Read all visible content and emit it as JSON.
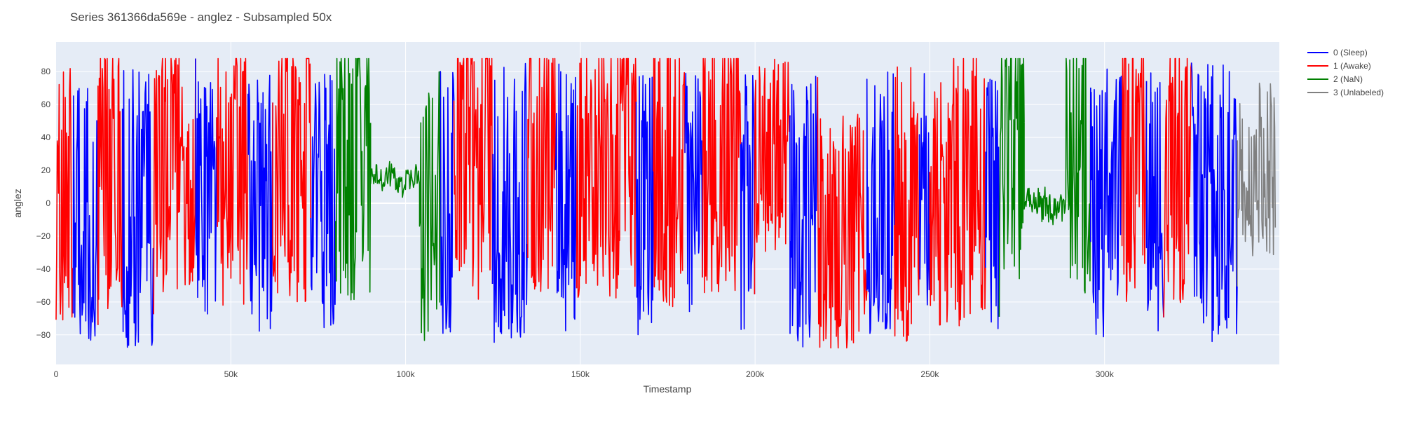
{
  "chart_data": {
    "type": "line",
    "title": "Series 361366da569e - anglez - Subsampled 50x",
    "xlabel": "Timestamp",
    "ylabel": "anglez",
    "xlim": [
      0,
      350000
    ],
    "ylim": [
      -98,
      98
    ],
    "x_ticks": [
      {
        "value": 0,
        "label": "0"
      },
      {
        "value": 50000,
        "label": "50k"
      },
      {
        "value": 100000,
        "label": "100k"
      },
      {
        "value": 150000,
        "label": "150k"
      },
      {
        "value": 200000,
        "label": "200k"
      },
      {
        "value": 250000,
        "label": "250k"
      },
      {
        "value": 300000,
        "label": "300k"
      }
    ],
    "y_ticks": [
      {
        "value": -80,
        "label": "−80"
      },
      {
        "value": -60,
        "label": "−60"
      },
      {
        "value": -40,
        "label": "−40"
      },
      {
        "value": -20,
        "label": "−20"
      },
      {
        "value": 0,
        "label": "0"
      },
      {
        "value": 20,
        "label": "20"
      },
      {
        "value": 40,
        "label": "40"
      },
      {
        "value": 60,
        "label": "60"
      },
      {
        "value": 80,
        "label": "80"
      }
    ],
    "grid": true,
    "legend_position": "top-right-outside",
    "series": [
      {
        "name": "0 (Sleep)",
        "color": "#0000ff"
      },
      {
        "name": "1 (Awake)",
        "color": "#ff0000"
      },
      {
        "name": "2 (NaN)",
        "color": "#008000"
      },
      {
        "name": "3 (Unlabeled)",
        "color": "#808080"
      }
    ],
    "segments": [
      {
        "series": 1,
        "x_start": 0,
        "x_end": 5000,
        "style": "noisy",
        "center": 0,
        "spread": 85
      },
      {
        "series": 0,
        "x_start": 5000,
        "x_end": 12000,
        "style": "noisy",
        "center": -5,
        "spread": 80
      },
      {
        "series": 1,
        "x_start": 12000,
        "x_end": 19000,
        "style": "noisy",
        "center": 20,
        "spread": 85
      },
      {
        "series": 0,
        "x_start": 19000,
        "x_end": 28000,
        "style": "noisy",
        "center": 0,
        "spread": 88
      },
      {
        "series": 1,
        "x_start": 28000,
        "x_end": 40000,
        "style": "noisy",
        "center": 25,
        "spread": 80
      },
      {
        "series": 0,
        "x_start": 40000,
        "x_end": 46000,
        "style": "noisy",
        "center": 0,
        "spread": 75
      },
      {
        "series": 1,
        "x_start": 46000,
        "x_end": 55000,
        "style": "noisy",
        "center": 20,
        "spread": 85
      },
      {
        "series": 0,
        "x_start": 55000,
        "x_end": 62000,
        "style": "noisy",
        "center": 0,
        "spread": 80
      },
      {
        "series": 1,
        "x_start": 62000,
        "x_end": 73000,
        "style": "noisy",
        "center": 25,
        "spread": 85
      },
      {
        "series": 0,
        "x_start": 73000,
        "x_end": 80000,
        "style": "noisy",
        "center": 0,
        "spread": 80
      },
      {
        "series": 2,
        "x_start": 80000,
        "x_end": 90000,
        "style": "noisy",
        "center": 25,
        "spread": 85
      },
      {
        "series": 2,
        "x_start": 90000,
        "x_end": 104000,
        "style": "calm",
        "center": 15,
        "spread": 22
      },
      {
        "series": 2,
        "x_start": 104000,
        "x_end": 110000,
        "style": "noisy",
        "center": 0,
        "spread": 85
      },
      {
        "series": 0,
        "x_start": 110000,
        "x_end": 114000,
        "style": "noisy",
        "center": 0,
        "spread": 80
      },
      {
        "series": 1,
        "x_start": 114000,
        "x_end": 125000,
        "style": "noisy",
        "center": 25,
        "spread": 85
      },
      {
        "series": 0,
        "x_start": 125000,
        "x_end": 135000,
        "style": "noisy",
        "center": 0,
        "spread": 85
      },
      {
        "series": 1,
        "x_start": 135000,
        "x_end": 143000,
        "style": "noisy",
        "center": 25,
        "spread": 80
      },
      {
        "series": 0,
        "x_start": 143000,
        "x_end": 149000,
        "style": "noisy",
        "center": 0,
        "spread": 88
      },
      {
        "series": 1,
        "x_start": 149000,
        "x_end": 166000,
        "style": "noisy",
        "center": 25,
        "spread": 85
      },
      {
        "series": 0,
        "x_start": 166000,
        "x_end": 171000,
        "style": "noisy",
        "center": 0,
        "spread": 80
      },
      {
        "series": 1,
        "x_start": 171000,
        "x_end": 180000,
        "style": "noisy",
        "center": 20,
        "spread": 85
      },
      {
        "series": 0,
        "x_start": 180000,
        "x_end": 185000,
        "style": "noisy",
        "center": 0,
        "spread": 85
      },
      {
        "series": 1,
        "x_start": 185000,
        "x_end": 196000,
        "style": "noisy",
        "center": 25,
        "spread": 80
      },
      {
        "series": 0,
        "x_start": 196000,
        "x_end": 200000,
        "style": "noisy",
        "center": 0,
        "spread": 80
      },
      {
        "series": 1,
        "x_start": 200000,
        "x_end": 210000,
        "style": "noisy",
        "center": 30,
        "spread": 60
      },
      {
        "series": 0,
        "x_start": 210000,
        "x_end": 218000,
        "style": "noisy",
        "center": 0,
        "spread": 88
      },
      {
        "series": 1,
        "x_start": 218000,
        "x_end": 232000,
        "style": "noisy",
        "center": -20,
        "spread": 75
      },
      {
        "series": 0,
        "x_start": 232000,
        "x_end": 240000,
        "style": "noisy",
        "center": 0,
        "spread": 80
      },
      {
        "series": 1,
        "x_start": 240000,
        "x_end": 247000,
        "style": "noisy",
        "center": 0,
        "spread": 85
      },
      {
        "series": 0,
        "x_start": 247000,
        "x_end": 250000,
        "style": "noisy",
        "center": 0,
        "spread": 80
      },
      {
        "series": 1,
        "x_start": 250000,
        "x_end": 266000,
        "style": "noisy",
        "center": 10,
        "spread": 85
      },
      {
        "series": 0,
        "x_start": 266000,
        "x_end": 270000,
        "style": "noisy",
        "center": 0,
        "spread": 80
      },
      {
        "series": 2,
        "x_start": 270000,
        "x_end": 277000,
        "style": "noisy",
        "center": 25,
        "spread": 75
      },
      {
        "series": 2,
        "x_start": 277000,
        "x_end": 289000,
        "style": "calm",
        "center": 0,
        "spread": 25
      },
      {
        "series": 2,
        "x_start": 289000,
        "x_end": 296000,
        "style": "noisy",
        "center": 25,
        "spread": 80
      },
      {
        "series": 0,
        "x_start": 296000,
        "x_end": 305000,
        "style": "noisy",
        "center": 0,
        "spread": 85
      },
      {
        "series": 1,
        "x_start": 305000,
        "x_end": 312000,
        "style": "noisy",
        "center": 20,
        "spread": 85
      },
      {
        "series": 0,
        "x_start": 312000,
        "x_end": 317000,
        "style": "noisy",
        "center": 0,
        "spread": 80
      },
      {
        "series": 1,
        "x_start": 317000,
        "x_end": 325000,
        "style": "noisy",
        "center": 20,
        "spread": 85
      },
      {
        "series": 0,
        "x_start": 325000,
        "x_end": 338000,
        "style": "noisy",
        "center": 0,
        "spread": 85
      },
      {
        "series": 3,
        "x_start": 338000,
        "x_end": 349000,
        "style": "noisy",
        "center": 20,
        "spread": 55
      }
    ]
  }
}
